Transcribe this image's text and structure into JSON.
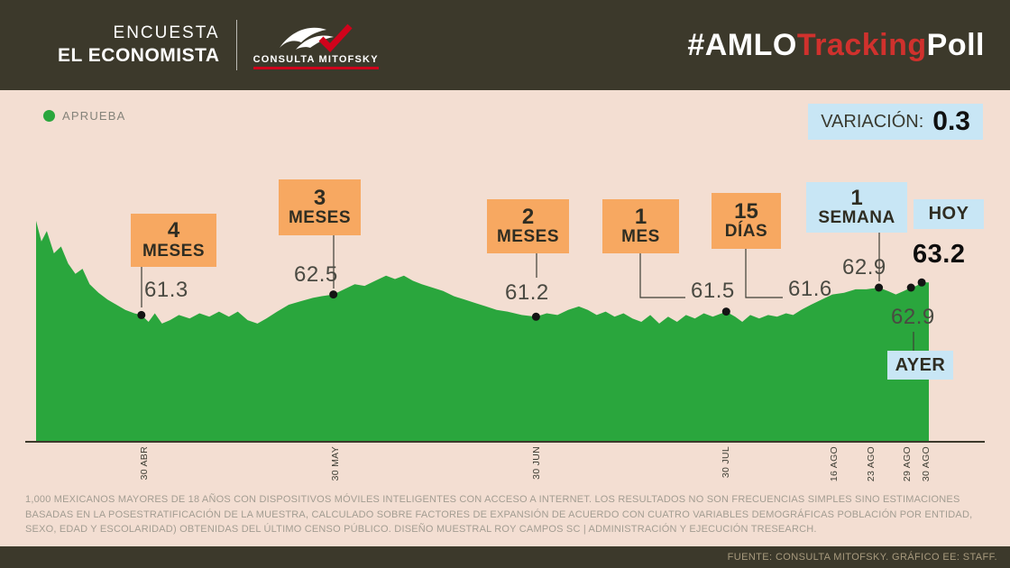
{
  "colors": {
    "approve_green": "#2aa63d",
    "highlight_orange": "#f7a861",
    "highlight_blue": "#c8e6f5",
    "accent_red": "#d0312d",
    "header_bg": "#3c392b",
    "page_bg": "#f3ded2"
  },
  "header": {
    "brand_top": "ENCUESTA",
    "brand_bottom": "EL ECONOMISTA",
    "logo_text": "CONSULTA MITOFSKY",
    "hashtag": {
      "p1": "#AMLO",
      "p2": "Tracking",
      "p3": "Poll"
    }
  },
  "legend": {
    "label": "APRUEBA"
  },
  "variation": {
    "label": "VARIACIÓN:",
    "value": "0.3"
  },
  "chart_data": {
    "type": "area",
    "title": "#AMLOTrackingPoll",
    "series_name": "APRUEBA",
    "ylabel": "",
    "xlabel": "",
    "ylim": [
      54,
      67
    ],
    "grid": false,
    "x_ticks": [
      "30 ABR",
      "30 MAY",
      "30 JUN",
      "30 JUL",
      "16 AGO",
      "23 AGO",
      "29 AGO",
      "30 AGO"
    ],
    "points": [
      [
        0,
        66.8
      ],
      [
        6,
        65.6
      ],
      [
        12,
        66.2
      ],
      [
        20,
        64.9
      ],
      [
        28,
        65.3
      ],
      [
        36,
        64.3
      ],
      [
        44,
        63.7
      ],
      [
        52,
        64.0
      ],
      [
        60,
        63.1
      ],
      [
        70,
        62.6
      ],
      [
        80,
        62.2
      ],
      [
        90,
        61.9
      ],
      [
        100,
        61.6
      ],
      [
        110,
        61.4
      ],
      [
        118,
        61.3
      ],
      [
        126,
        60.9
      ],
      [
        133,
        61.4
      ],
      [
        141,
        60.8
      ],
      [
        150,
        61.0
      ],
      [
        160,
        61.3
      ],
      [
        172,
        61.1
      ],
      [
        183,
        61.4
      ],
      [
        194,
        61.2
      ],
      [
        205,
        61.5
      ],
      [
        216,
        61.2
      ],
      [
        226,
        61.5
      ],
      [
        237,
        61.0
      ],
      [
        248,
        60.8
      ],
      [
        258,
        61.1
      ],
      [
        270,
        61.5
      ],
      [
        283,
        61.9
      ],
      [
        296,
        62.1
      ],
      [
        310,
        62.3
      ],
      [
        320,
        62.4
      ],
      [
        333,
        62.5
      ],
      [
        345,
        62.8
      ],
      [
        357,
        63.1
      ],
      [
        368,
        63.0
      ],
      [
        380,
        63.3
      ],
      [
        392,
        63.6
      ],
      [
        402,
        63.4
      ],
      [
        412,
        63.6
      ],
      [
        422,
        63.3
      ],
      [
        432,
        63.1
      ],
      [
        444,
        62.9
      ],
      [
        456,
        62.7
      ],
      [
        468,
        62.4
      ],
      [
        480,
        62.2
      ],
      [
        492,
        62.0
      ],
      [
        504,
        61.8
      ],
      [
        516,
        61.6
      ],
      [
        528,
        61.5
      ],
      [
        544,
        61.3
      ],
      [
        560,
        61.2
      ],
      [
        572,
        61.4
      ],
      [
        584,
        61.3
      ],
      [
        596,
        61.6
      ],
      [
        608,
        61.8
      ],
      [
        618,
        61.6
      ],
      [
        628,
        61.3
      ],
      [
        638,
        61.5
      ],
      [
        648,
        61.2
      ],
      [
        658,
        61.4
      ],
      [
        668,
        61.1
      ],
      [
        678,
        60.9
      ],
      [
        688,
        61.3
      ],
      [
        698,
        60.8
      ],
      [
        708,
        61.2
      ],
      [
        718,
        60.9
      ],
      [
        728,
        61.3
      ],
      [
        738,
        61.1
      ],
      [
        748,
        61.4
      ],
      [
        758,
        61.2
      ],
      [
        773,
        61.5
      ],
      [
        783,
        61.2
      ],
      [
        791,
        60.9
      ],
      [
        800,
        61.3
      ],
      [
        810,
        61.1
      ],
      [
        820,
        61.3
      ],
      [
        830,
        61.2
      ],
      [
        840,
        61.4
      ],
      [
        848,
        61.3
      ],
      [
        857,
        61.6
      ],
      [
        868,
        61.9
      ],
      [
        880,
        62.2
      ],
      [
        892,
        62.5
      ],
      [
        905,
        62.6
      ],
      [
        918,
        62.8
      ],
      [
        930,
        62.8
      ],
      [
        944,
        62.9
      ],
      [
        954,
        62.7
      ],
      [
        963,
        62.5
      ],
      [
        972,
        62.7
      ],
      [
        980,
        62.9
      ],
      [
        986,
        63.0
      ],
      [
        992,
        63.2
      ],
      [
        1000,
        63.2
      ]
    ],
    "annotations": [
      {
        "line1": "4",
        "line2": "MESES",
        "value": "61.3",
        "x_rel": 118
      },
      {
        "line1": "3",
        "line2": "MESES",
        "value": "62.5",
        "x_rel": 333
      },
      {
        "line1": "2",
        "line2": "MESES",
        "value": "61.2",
        "x_rel": 560
      },
      {
        "line1": "1",
        "line2": "MES",
        "value": "61.5",
        "x_rel": 773
      },
      {
        "line1": "15",
        "line2": "DÍAS",
        "value": "61.6"
      },
      {
        "line1": "1",
        "line2": "SEMANA",
        "value": "62.9",
        "x_rel": 944
      },
      {
        "label": "HOY",
        "value": "63.2",
        "x_rel": 992
      },
      {
        "label": "AYER",
        "value": "62.9",
        "x_rel": 980
      }
    ]
  },
  "footer": {
    "methodology": "1,000 MEXICANOS MAYORES DE 18 AÑOS CON DISPOSITIVOS MÓVILES INTELIGENTES CON ACCESO A INTERNET. LOS RESULTADOS NO SON FRECUENCIAS SIMPLES SINO ESTIMACIONES BASADAS EN LA POSESTRATIFICACIÓN DE LA MUESTRA, CALCULADO SOBRE FACTORES DE EXPANSIÓN DE ACUERDO CON CUATRO VARIABLES DEMOGRÁFICAS POBLACIÓN POR ENTIDAD, SEXO, EDAD Y ESCOLARIDAD) OBTENIDAS DEL ÚLTIMO CENSO PÚBLICO. DISEÑO MUESTRAL ROY CAMPOS SC | ADMINISTRACIÓN Y EJECUCIÓN TRESEARCH.",
    "source": "FUENTE: CONSULTA MITOFSKY. GRÁFICO EE: STAFF."
  }
}
